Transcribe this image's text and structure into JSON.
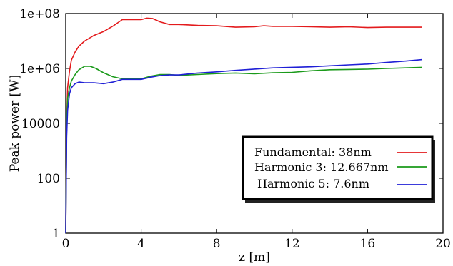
{
  "chart_data": {
    "type": "line",
    "xlabel": "z [m]",
    "ylabel": "Peak power [W]",
    "xlim": [
      0,
      20
    ],
    "ylim": [
      1,
      100000000
    ],
    "yscale": "log",
    "x_ticks": [
      0,
      4,
      8,
      12,
      16,
      20
    ],
    "x_tick_labels": [
      "0",
      "4",
      "8",
      "12",
      "16",
      "20"
    ],
    "y_ticks": [
      1,
      100,
      10000,
      1000000,
      100000000
    ],
    "y_tick_labels": [
      "1",
      "100",
      "10000",
      "1e+06",
      "1e+08"
    ],
    "grid": false,
    "legend_position": "lower-right",
    "series": [
      {
        "name": "Fundamental: 38nm",
        "color": "#e31a1c",
        "x": [
          0,
          0.05,
          0.1,
          0.2,
          0.3,
          0.5,
          0.7,
          1.0,
          1.5,
          2.0,
          2.5,
          3.0,
          3.5,
          4.0,
          4.3,
          4.6,
          5.0,
          5.5,
          6.0,
          7.0,
          8.0,
          9.0,
          10.0,
          10.5,
          11.0,
          12.0,
          13.0,
          14.0,
          15.0,
          16.0,
          17.0,
          18.0,
          18.9
        ],
        "y": [
          1,
          10000,
          200000,
          800000,
          2000000,
          4000000,
          6500000,
          10000000,
          16000000,
          22000000,
          35000000,
          60000000,
          60000000,
          60000000,
          68000000,
          66000000,
          50000000,
          40000000,
          40000000,
          37000000,
          36000000,
          32000000,
          33000000,
          36000000,
          34000000,
          34000000,
          33000000,
          32000000,
          33000000,
          31000000,
          32000000,
          32000000,
          32000000
        ]
      },
      {
        "name": "Harmonic 3: 12.667nm",
        "color": "#1a9a1a",
        "x": [
          0,
          0.05,
          0.1,
          0.2,
          0.3,
          0.5,
          0.7,
          1.0,
          1.3,
          1.6,
          2.0,
          2.5,
          3.0,
          3.5,
          4.0,
          4.5,
          5.0,
          5.5,
          6.0,
          7.0,
          8.0,
          9.0,
          10.0,
          11.0,
          12.0,
          13.0,
          14.0,
          15.0,
          16.0,
          17.0,
          18.0,
          18.9
        ],
        "y": [
          1,
          10000,
          80000,
          200000,
          350000,
          600000,
          900000,
          1200000,
          1200000,
          1000000,
          700000,
          500000,
          420000,
          420000,
          420000,
          520000,
          600000,
          600000,
          560000,
          600000,
          650000,
          680000,
          640000,
          700000,
          720000,
          820000,
          900000,
          920000,
          940000,
          1000000,
          1050000,
          1100000
        ]
      },
      {
        "name": "Harmonic 5: 7.6nm",
        "color": "#1f1fd6",
        "x": [
          0,
          0.05,
          0.1,
          0.2,
          0.3,
          0.5,
          0.7,
          1.0,
          1.5,
          2.0,
          2.5,
          3.0,
          3.5,
          4.0,
          4.5,
          5.0,
          5.5,
          6.0,
          7.0,
          8.0,
          9.0,
          10.0,
          11.0,
          12.0,
          13.0,
          14.0,
          15.0,
          16.0,
          17.0,
          18.0,
          18.9
        ],
        "y": [
          1,
          3000,
          30000,
          120000,
          200000,
          280000,
          320000,
          300000,
          300000,
          280000,
          320000,
          400000,
          400000,
          400000,
          480000,
          550000,
          580000,
          580000,
          680000,
          750000,
          850000,
          950000,
          1050000,
          1100000,
          1150000,
          1250000,
          1350000,
          1450000,
          1650000,
          1850000,
          2100000
        ]
      }
    ]
  }
}
